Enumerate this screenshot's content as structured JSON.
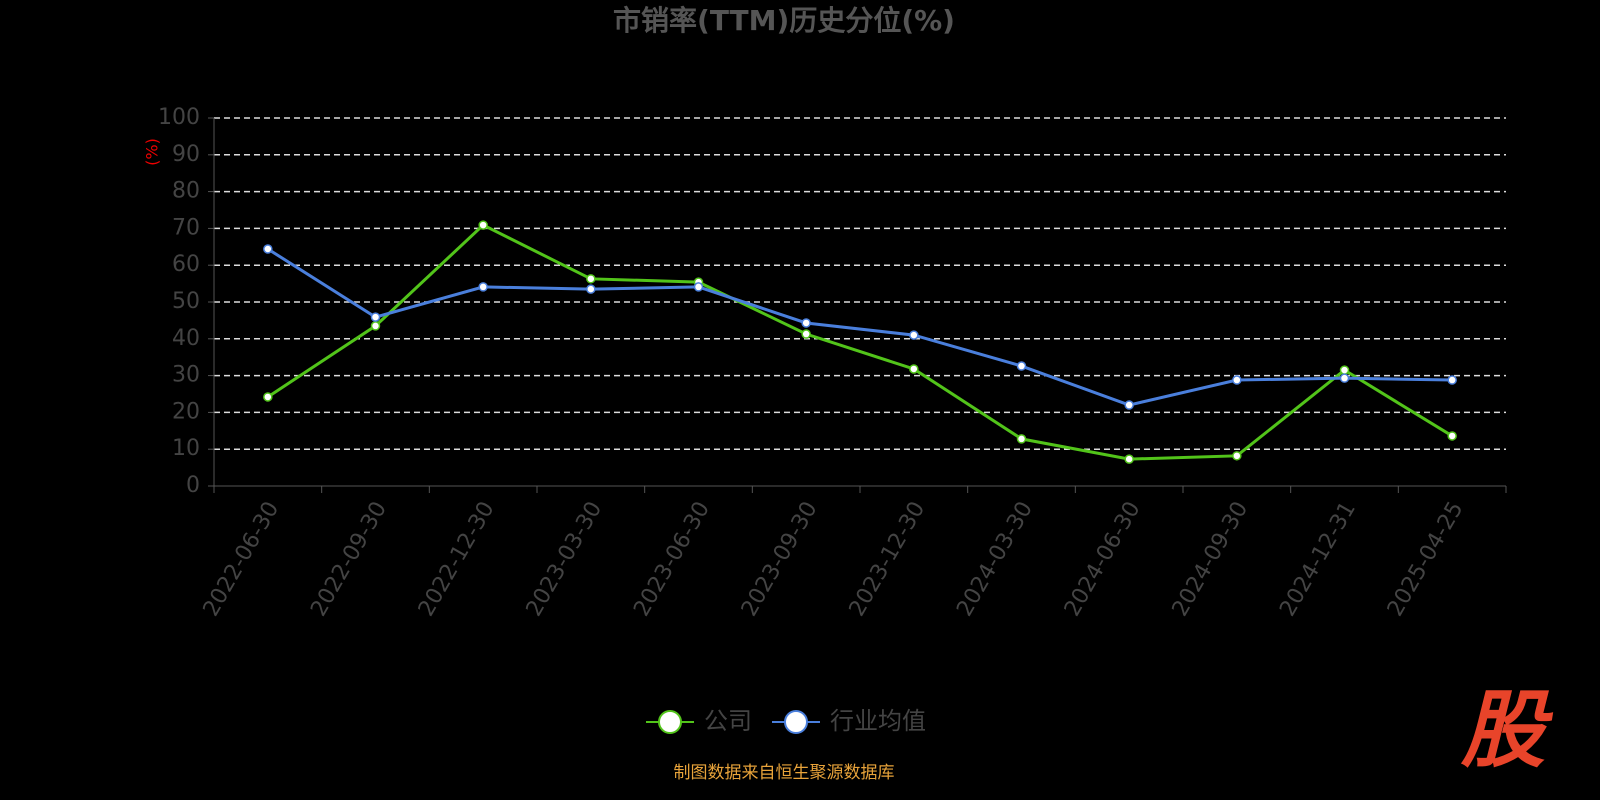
{
  "chart_data": {
    "type": "line",
    "title": "市销率(TTM)历史分位(%)",
    "y_label": "(%)",
    "categories": [
      "2022-06-30",
      "2022-09-30",
      "2022-12-30",
      "2023-03-30",
      "2023-06-30",
      "2023-09-30",
      "2023-12-30",
      "2024-03-30",
      "2024-06-30",
      "2024-09-30",
      "2024-12-31",
      "2025-04-25"
    ],
    "series": [
      {
        "name": "公司",
        "color": "#52c41a",
        "values": [
          24.2,
          43.5,
          70.9,
          56.3,
          55.4,
          41.3,
          31.8,
          12.8,
          7.3,
          8.2,
          31.5,
          13.6
        ]
      },
      {
        "name": "行业均值",
        "color": "#4a7fdc",
        "values": [
          64.4,
          45.9,
          54.1,
          53.5,
          54.1,
          44.3,
          41.0,
          32.6,
          22.0,
          28.8,
          29.3,
          28.8
        ]
      }
    ],
    "ylim": [
      0,
      100
    ],
    "yticks": [
      0,
      10,
      20,
      30,
      40,
      50,
      60,
      70,
      80,
      90,
      100
    ],
    "grid": true,
    "legend": "bottom",
    "source": "制图数据来自恒生聚源数据库",
    "logo": "股"
  }
}
